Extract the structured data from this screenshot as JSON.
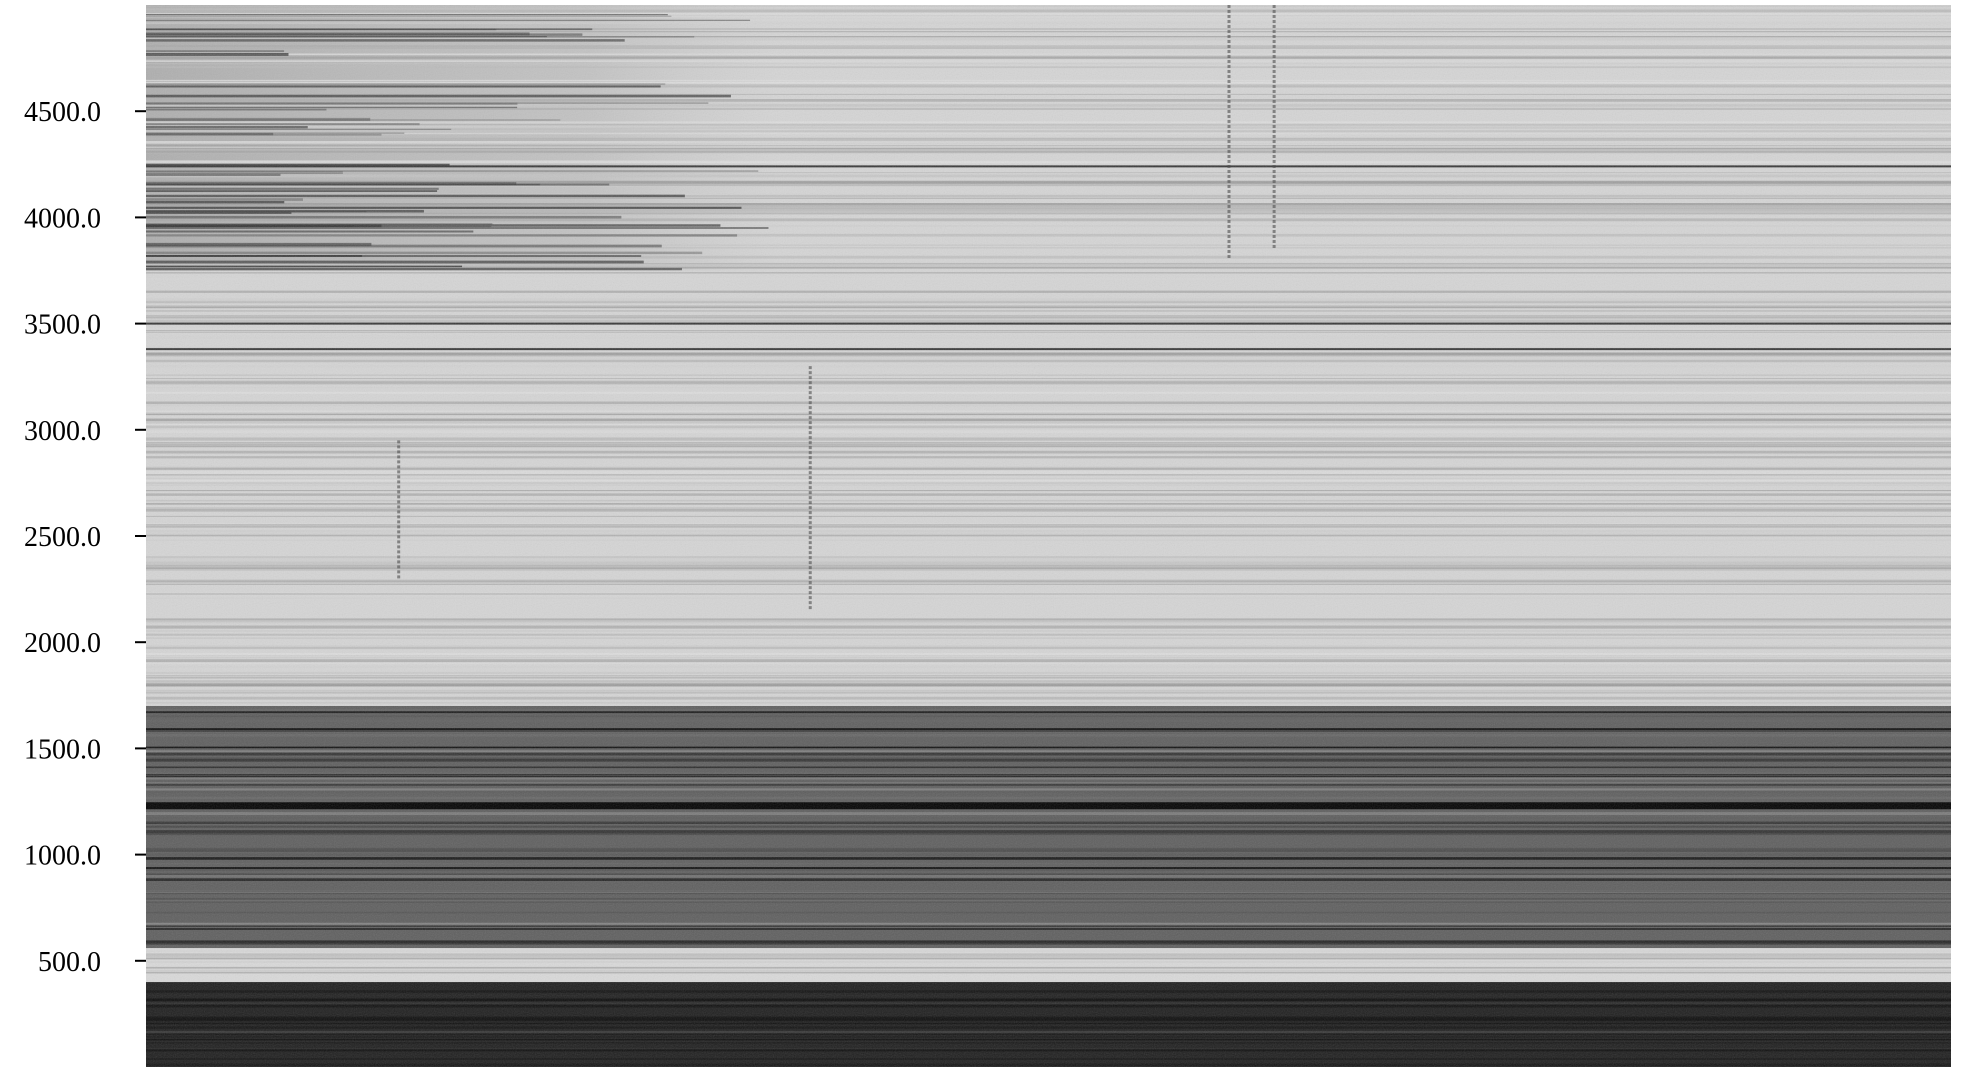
{
  "chart_data": {
    "type": "heatmap",
    "colormap": "grayscale",
    "title": "",
    "xlabel": "",
    "ylabel": "",
    "ylim": [
      0,
      5000
    ],
    "yticks": [
      500,
      1000,
      1500,
      2000,
      2500,
      3000,
      3500,
      4000,
      4500
    ],
    "ytick_labels": [
      "500.0",
      "1000.0",
      "1500.0",
      "2000.0",
      "2500.0",
      "3000.0",
      "3500.0",
      "4000.0",
      "4500.0"
    ],
    "bands": [
      {
        "y0": 0,
        "y1": 400,
        "level": 0.9
      },
      {
        "y0": 400,
        "y1": 560,
        "level": 0.08
      },
      {
        "y0": 560,
        "y1": 1700,
        "level": 0.62
      },
      {
        "y0": 1700,
        "y1": 5000,
        "level": 0.1
      }
    ],
    "strong_lines": [
      1230,
      3380,
      3500,
      4240
    ],
    "upper_dense_region": {
      "x0": 0,
      "x1": 0.35,
      "y0": 3750,
      "y1": 5000
    },
    "vertical_streaks": [
      {
        "x": 0.14,
        "y0": 2300,
        "y1": 2950
      },
      {
        "x": 0.368,
        "y0": 2150,
        "y1": 3300
      },
      {
        "x": 0.6,
        "y0": 3800,
        "y1": 5000
      },
      {
        "x": 0.625,
        "y0": 3850,
        "y1": 5000
      }
    ]
  }
}
